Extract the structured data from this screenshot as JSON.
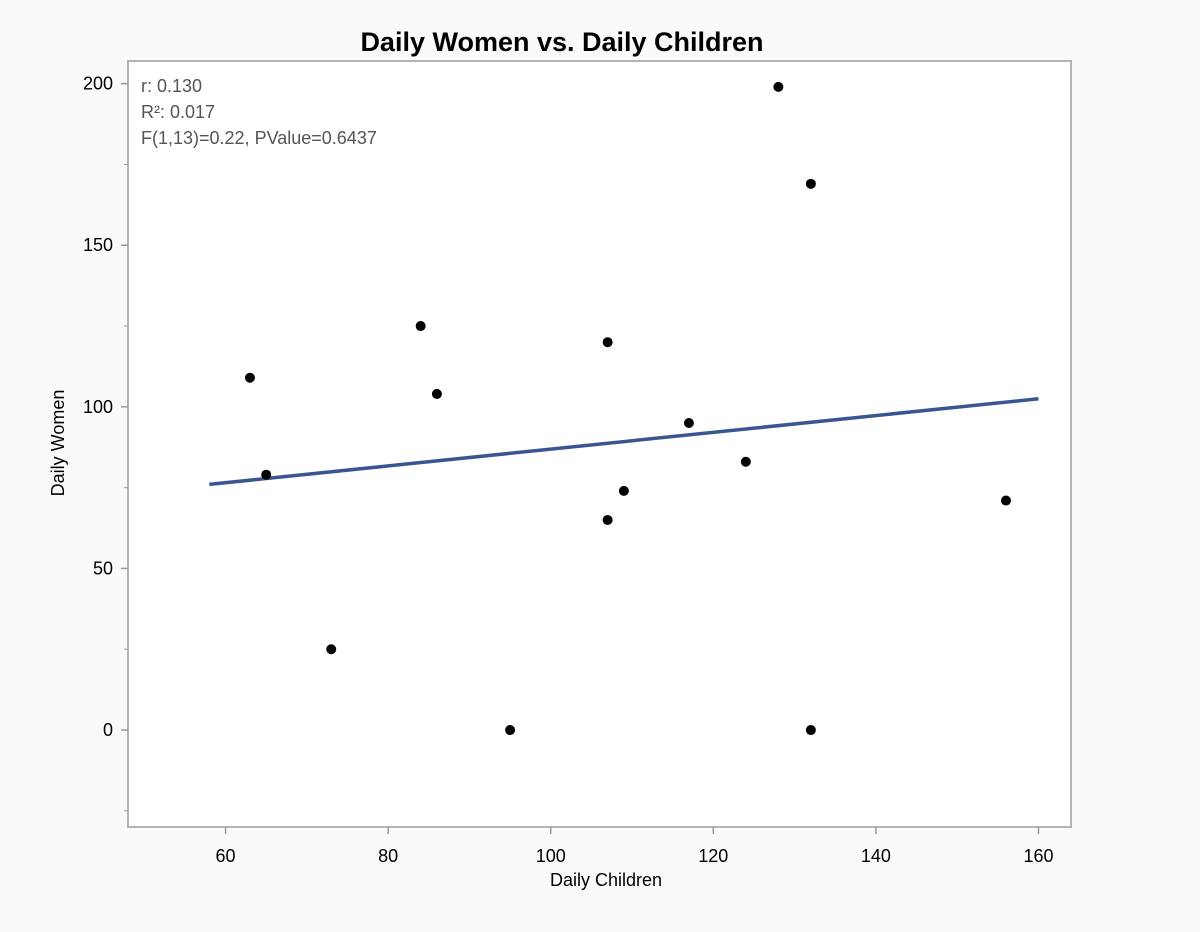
{
  "chart_data": {
    "type": "scatter",
    "title": "Daily Women vs. Daily Children",
    "xlabel": "Daily Children",
    "ylabel": "Daily Women",
    "xlim": [
      48,
      164
    ],
    "ylim": [
      -30,
      207
    ],
    "x_ticks": [
      60,
      80,
      100,
      120,
      140,
      160
    ],
    "y_ticks": [
      0,
      50,
      100,
      150,
      200
    ],
    "x_minor_ticks": [],
    "y_minor_ticks": [
      -25,
      25,
      75,
      125,
      175
    ],
    "grid": false,
    "stats": [
      "r: 0.130",
      "R²: 0.017",
      "F(1,13)=0.22, PValue=0.6437"
    ],
    "series": [
      {
        "points": [
          {
            "x": 63,
            "y": 109
          },
          {
            "x": 65,
            "y": 79
          },
          {
            "x": 73,
            "y": 25
          },
          {
            "x": 84,
            "y": 125
          },
          {
            "x": 86,
            "y": 104
          },
          {
            "x": 95,
            "y": 0
          },
          {
            "x": 107,
            "y": 120
          },
          {
            "x": 107,
            "y": 65
          },
          {
            "x": 109,
            "y": 74
          },
          {
            "x": 117,
            "y": 95
          },
          {
            "x": 124,
            "y": 83
          },
          {
            "x": 128,
            "y": 199
          },
          {
            "x": 132,
            "y": 169
          },
          {
            "x": 132,
            "y": 0
          },
          {
            "x": 156,
            "y": 71
          }
        ],
        "color": "#000000"
      }
    ],
    "fit_line": {
      "x": [
        58,
        160
      ],
      "y": [
        76,
        102.5
      ],
      "color": "#3a5594"
    }
  }
}
